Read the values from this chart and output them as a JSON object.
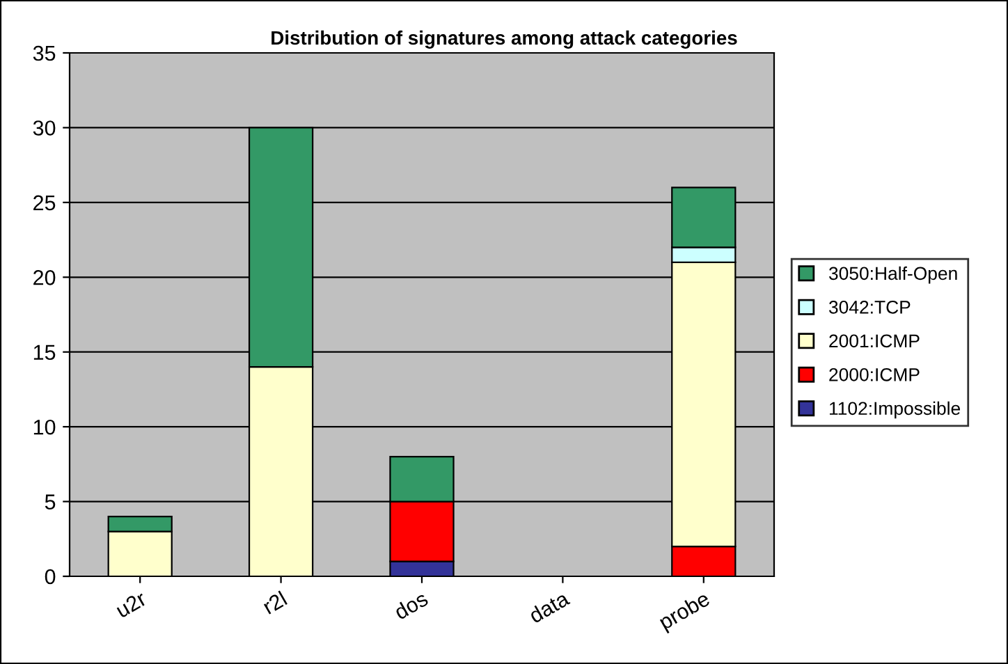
{
  "chart_data": {
    "type": "bar",
    "stacked": true,
    "title": "Distribution of signatures among attack categories",
    "categories": [
      "u2r",
      "r2l",
      "dos",
      "data",
      "probe"
    ],
    "series": [
      {
        "name": "1102:Impossible",
        "color": "#333399",
        "values": [
          null,
          null,
          1,
          null,
          null
        ]
      },
      {
        "name": "2000:ICMP",
        "color": "#ff0000",
        "values": [
          null,
          null,
          4,
          null,
          2
        ]
      },
      {
        "name": "2001:ICMP",
        "color": "#ffffcc",
        "values": [
          3,
          14,
          null,
          null,
          19
        ]
      },
      {
        "name": "3042:TCP",
        "color": "#ccffff",
        "values": [
          null,
          null,
          null,
          null,
          1
        ]
      },
      {
        "name": "3050:Half-Open",
        "color": "#339966",
        "values": [
          1,
          16,
          3,
          null,
          4
        ]
      }
    ],
    "ylim": [
      0,
      35
    ],
    "yticks": [
      0,
      5,
      10,
      15,
      20,
      25,
      30,
      35
    ],
    "grid": "y",
    "legend": "right"
  }
}
